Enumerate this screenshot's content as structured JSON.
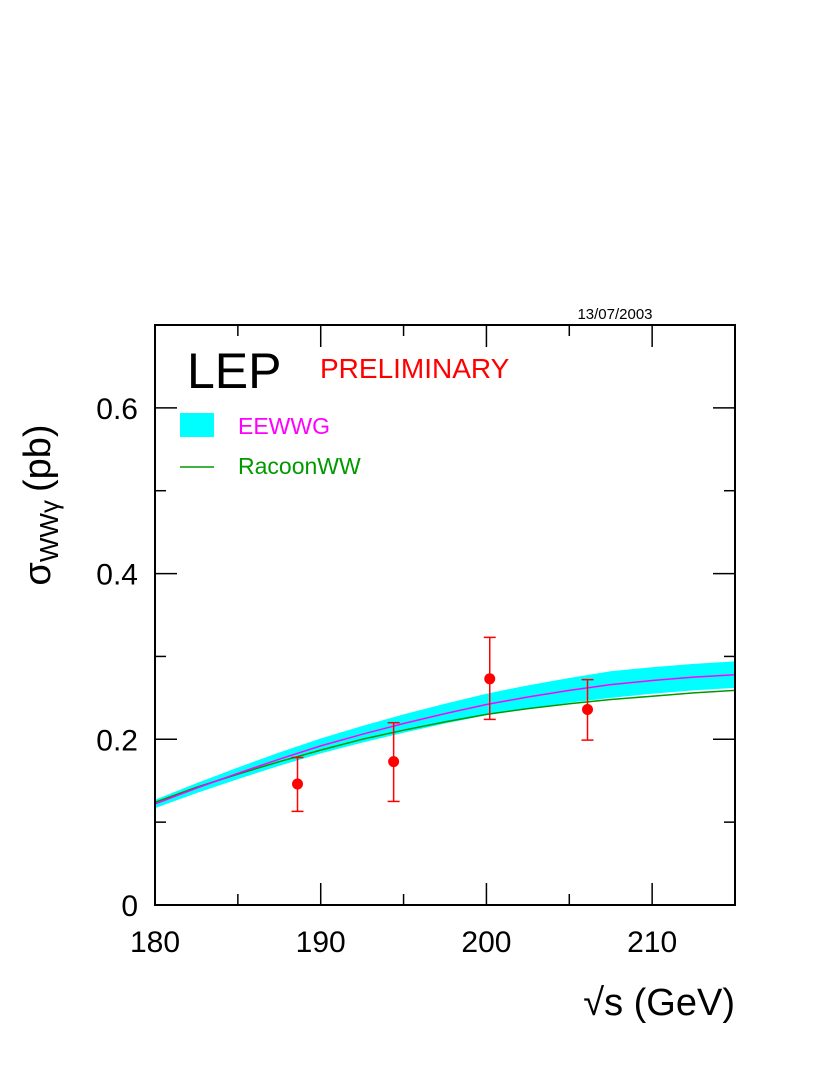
{
  "chart_data": {
    "type": "line",
    "date_stamp": "13/07/2003",
    "experiment_label": "LEP",
    "preliminary_label": "PRELIMINARY",
    "xlabel": "√s (GeV)",
    "ylabel": {
      "main": "σ",
      "sub": "WWγ",
      "unit": "(pb)"
    },
    "xlim": [
      180,
      215
    ],
    "ylim": [
      0,
      0.7
    ],
    "x_ticks": [
      180,
      190,
      200,
      210
    ],
    "x_tick_labels": [
      "180",
      "190",
      "200",
      "210"
    ],
    "y_ticks": [
      0,
      0.2,
      0.4,
      0.6
    ],
    "y_tick_labels": [
      "0",
      "0.2",
      "0.4",
      "0.6"
    ],
    "grid": false,
    "legend_position": "top-left",
    "series": [
      {
        "name": "EEWWG",
        "kind": "band",
        "color": "#00ffff",
        "line_color": "#ff00ff",
        "x": [
          180,
          182.5,
          185,
          187.5,
          190,
          192.5,
          195,
          197.5,
          200,
          202.5,
          205,
          207.5,
          210,
          212.5,
          215
        ],
        "center": [
          0.122,
          0.141,
          0.159,
          0.176,
          0.192,
          0.206,
          0.219,
          0.231,
          0.242,
          0.251,
          0.259,
          0.266,
          0.271,
          0.275,
          0.278
        ],
        "lower": [
          0.117,
          0.135,
          0.152,
          0.168,
          0.183,
          0.196,
          0.208,
          0.219,
          0.229,
          0.237,
          0.244,
          0.25,
          0.255,
          0.259,
          0.262
        ],
        "upper": [
          0.127,
          0.147,
          0.166,
          0.184,
          0.201,
          0.216,
          0.23,
          0.243,
          0.255,
          0.265,
          0.274,
          0.282,
          0.287,
          0.291,
          0.294
        ]
      },
      {
        "name": "RacoonWW",
        "kind": "line",
        "color": "#009900",
        "x": [
          180,
          182.5,
          185,
          187.5,
          190,
          192.5,
          195,
          197.5,
          200,
          202.5,
          205,
          207.5,
          210,
          212.5,
          215
        ],
        "y": [
          0.124,
          0.142,
          0.158,
          0.173,
          0.187,
          0.2,
          0.211,
          0.221,
          0.23,
          0.237,
          0.243,
          0.248,
          0.252,
          0.256,
          0.259
        ]
      }
    ],
    "data_points": {
      "color": "#ff0000",
      "points": [
        {
          "x": 188.6,
          "y": 0.146,
          "err_low": 0.113,
          "err_high": 0.178
        },
        {
          "x": 194.4,
          "y": 0.173,
          "err_low": 0.125,
          "err_high": 0.22
        },
        {
          "x": 200.2,
          "y": 0.273,
          "err_low": 0.224,
          "err_high": 0.323
        },
        {
          "x": 206.1,
          "y": 0.236,
          "err_low": 0.199,
          "err_high": 0.272
        }
      ]
    }
  }
}
